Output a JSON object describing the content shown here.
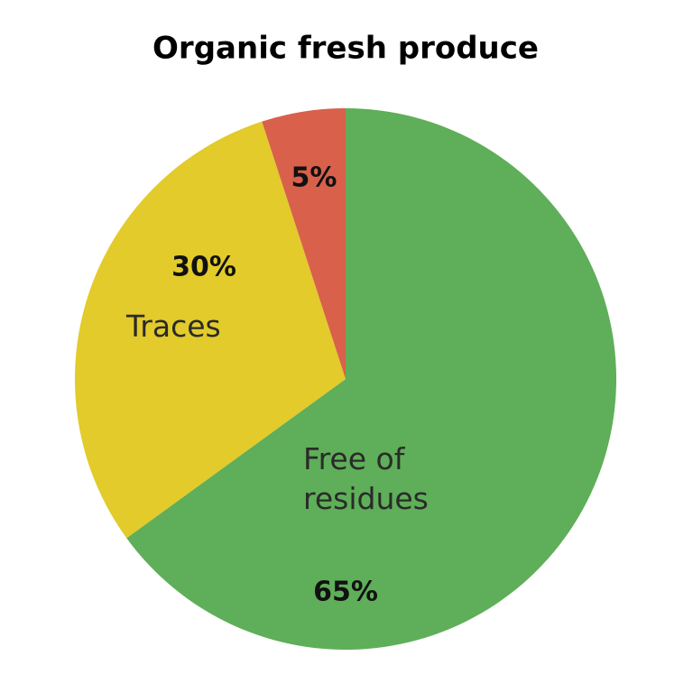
{
  "chart_data": {
    "type": "pie",
    "title": "Organic fresh produce",
    "categories": [
      "Free of residues",
      "Traces",
      null
    ],
    "values": [
      65,
      30,
      5
    ],
    "value_labels": [
      "65%",
      "30%",
      "5%"
    ],
    "colors": [
      "#5fae59",
      "#e2cb2a",
      "#d9604b"
    ]
  }
}
